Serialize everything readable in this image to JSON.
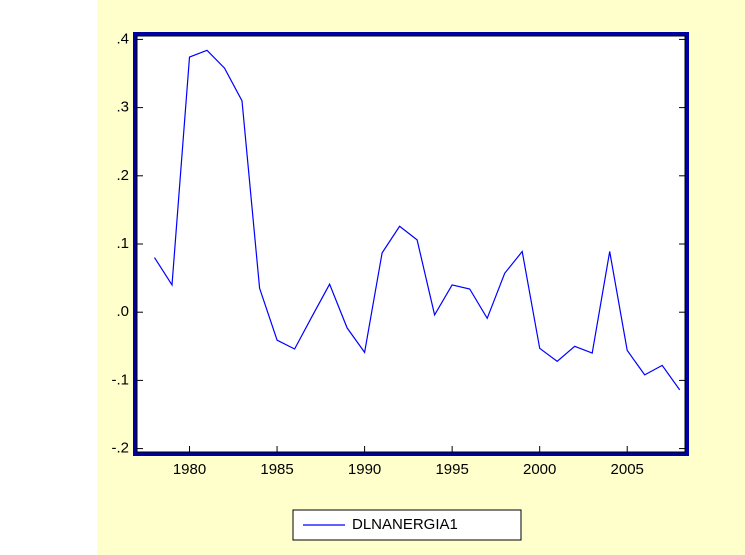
{
  "chart_data": {
    "type": "line",
    "x": [
      1978,
      1979,
      1980,
      1981,
      1982,
      1983,
      1984,
      1985,
      1986,
      1987,
      1988,
      1989,
      1990,
      1991,
      1992,
      1993,
      1994,
      1995,
      1996,
      1997,
      1998,
      1999,
      2000,
      2001,
      2002,
      2003,
      2004,
      2005,
      2006,
      2007,
      2008
    ],
    "series": [
      {
        "name": "DLNANERGIA1",
        "color": "#0000ff",
        "values": [
          0.08,
          0.04,
          0.374,
          0.384,
          0.358,
          0.31,
          0.035,
          -0.041,
          -0.054,
          -0.006,
          0.041,
          -0.023,
          -0.059,
          0.087,
          0.126,
          0.106,
          -0.004,
          0.04,
          0.034,
          -0.009,
          0.057,
          0.089,
          -0.053,
          -0.072,
          -0.05,
          -0.06,
          0.089,
          -0.056,
          -0.092,
          -0.078,
          -0.114
        ]
      }
    ],
    "xlim": [
      1977,
      2008.3
    ],
    "xticks": [
      1980,
      1985,
      1990,
      1995,
      2000,
      2005
    ],
    "ylim": [
      -0.205,
      0.405
    ],
    "yticks": [
      {
        "value": -0.2,
        "label": "-.2"
      },
      {
        "value": -0.1,
        "label": "-.1"
      },
      {
        "value": 0,
        "label": ".0"
      },
      {
        "value": 0.1,
        "label": ".1"
      },
      {
        "value": 0.2,
        "label": ".2"
      },
      {
        "value": 0.3,
        "label": ".3"
      },
      {
        "value": 0.4,
        "label": ".4"
      }
    ],
    "legend": "bottom"
  }
}
